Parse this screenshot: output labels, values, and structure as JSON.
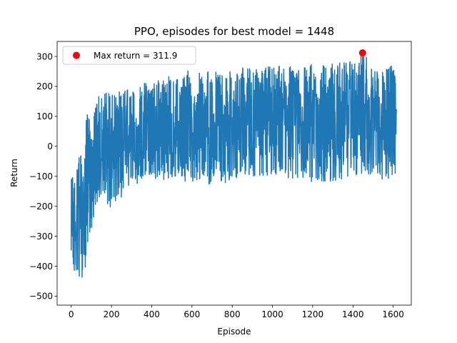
{
  "chart_data": {
    "type": "line",
    "title": "PPO, episodes for best model = 1448",
    "xlabel": "Episode",
    "ylabel": "Return",
    "xlim": [
      -70,
      1690
    ],
    "ylim": [
      -530,
      350
    ],
    "xticks": [
      0,
      200,
      400,
      600,
      800,
      1000,
      1200,
      1400,
      1600
    ],
    "yticks": [
      -500,
      -400,
      -300,
      -200,
      -100,
      0,
      100,
      200,
      300
    ],
    "series": [
      {
        "color": "#1f77b4",
        "n_episodes": 1617,
        "envelope": [
          {
            "x": 0,
            "min": -370,
            "max": -90
          },
          {
            "x": 20,
            "min": -490,
            "max": -100
          },
          {
            "x": 40,
            "min": -440,
            "max": 10
          },
          {
            "x": 60,
            "min": -480,
            "max": -60
          },
          {
            "x": 80,
            "min": -330,
            "max": 180
          },
          {
            "x": 100,
            "min": -290,
            "max": 40
          },
          {
            "x": 120,
            "min": -220,
            "max": 150
          },
          {
            "x": 140,
            "min": -180,
            "max": 190
          },
          {
            "x": 200,
            "min": -210,
            "max": 180
          },
          {
            "x": 300,
            "min": -130,
            "max": 200
          },
          {
            "x": 400,
            "min": -120,
            "max": 220
          },
          {
            "x": 500,
            "min": -110,
            "max": 240
          },
          {
            "x": 600,
            "min": -120,
            "max": 255
          },
          {
            "x": 700,
            "min": -130,
            "max": 250
          },
          {
            "x": 800,
            "min": -120,
            "max": 260
          },
          {
            "x": 900,
            "min": -100,
            "max": 265
          },
          {
            "x": 1000,
            "min": -100,
            "max": 270
          },
          {
            "x": 1100,
            "min": -110,
            "max": 270
          },
          {
            "x": 1200,
            "min": -120,
            "max": 275
          },
          {
            "x": 1300,
            "min": -120,
            "max": 280
          },
          {
            "x": 1400,
            "min": -110,
            "max": 285
          },
          {
            "x": 1448,
            "min": -90,
            "max": 311.9
          },
          {
            "x": 1500,
            "min": -100,
            "max": 280
          },
          {
            "x": 1617,
            "min": -130,
            "max": 270
          }
        ]
      }
    ],
    "highlight": {
      "x": 1448,
      "y": 311.9,
      "color": "#ff0000"
    },
    "legend": {
      "label": "Max return = 311.9",
      "position": "top-left"
    }
  }
}
